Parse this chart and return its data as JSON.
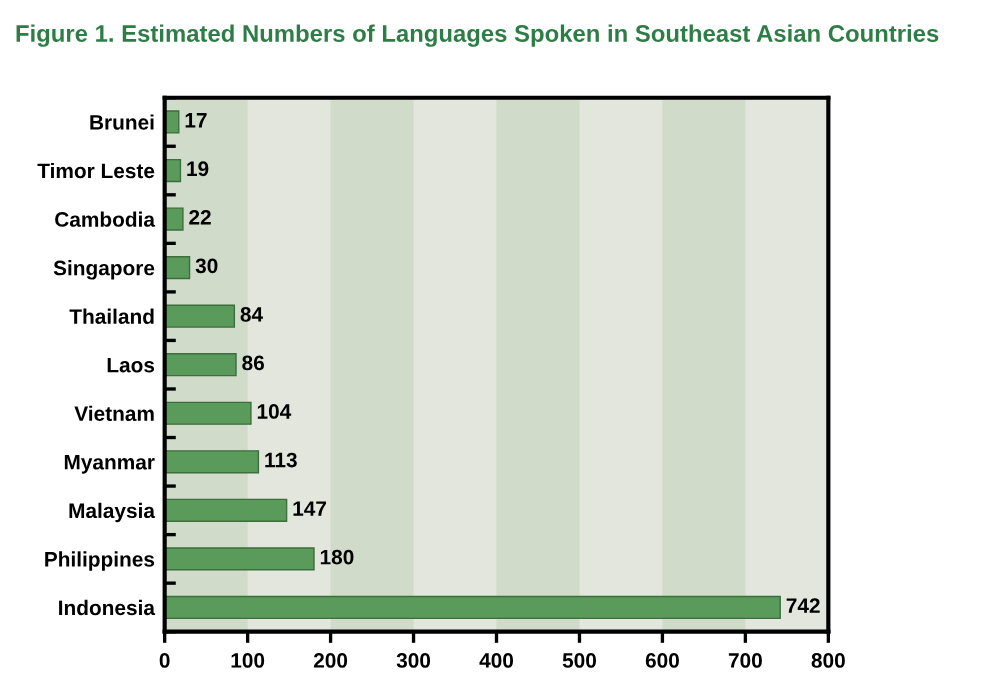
{
  "chart_data": {
    "type": "bar",
    "orientation": "horizontal",
    "title": "Figure 1. Estimated Numbers of Languages Spoken in Southeast Asian Countries",
    "categories": [
      "Brunei",
      "Timor Leste",
      "Cambodia",
      "Singapore",
      "Thailand",
      "Laos",
      "Vietnam",
      "Myanmar",
      "Malaysia",
      "Philippines",
      "Indonesia"
    ],
    "values": [
      17,
      19,
      22,
      30,
      84,
      86,
      104,
      113,
      147,
      180,
      742
    ],
    "color": "#5a9a5a",
    "data_labels": true,
    "xlim": [
      0,
      800
    ],
    "xticks": [
      0,
      100,
      200,
      300,
      400,
      500,
      600,
      700,
      800
    ],
    "bands": [
      {
        "axis": "x",
        "from": 0,
        "to": 100,
        "color": "#d0dbc9"
      },
      {
        "axis": "x",
        "from": 200,
        "to": 300,
        "color": "#d0dbc9"
      },
      {
        "axis": "x",
        "from": 400,
        "to": 500,
        "color": "#d0dbc9"
      },
      {
        "axis": "x",
        "from": 600,
        "to": 700,
        "color": "#d0dbc9"
      }
    ],
    "grid": false,
    "legend": false
  }
}
